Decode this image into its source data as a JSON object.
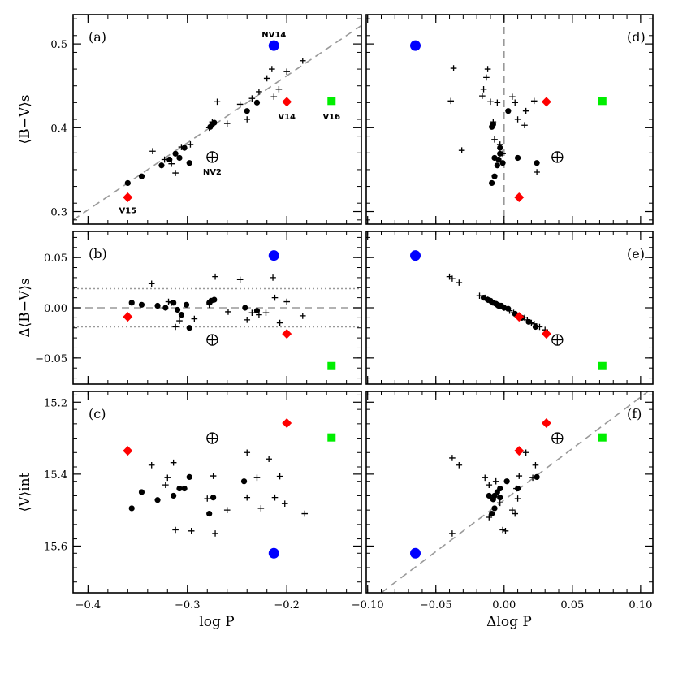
{
  "colors": {
    "blue": "#0000ff",
    "red": "#ff0000",
    "green": "#00ee00",
    "dash": "#999999",
    "dot": "#999999"
  },
  "x_tick_labels": {
    "logP": [
      "−0.4",
      "−0.3",
      "−0.2"
    ],
    "dlogP": [
      "−0.10",
      "−0.05",
      "0.00",
      "0.05",
      "0.10"
    ]
  },
  "axis_labels": {
    "x_left": "log P",
    "x_right": "Δlog P",
    "y_a": "⟨B−V⟩s",
    "y_b": "Δ⟨B−V⟩s",
    "y_c": "⟨V⟩int"
  },
  "panels": [
    {
      "id": "a",
      "label": "(a)"
    },
    {
      "id": "b",
      "label": "(b)"
    },
    {
      "id": "c",
      "label": "(c)"
    },
    {
      "id": "d",
      "label": "(d)"
    },
    {
      "id": "e",
      "label": "(e)"
    },
    {
      "id": "f",
      "label": "(f)"
    }
  ],
  "chart_data": [
    {
      "panel": "a",
      "type": "scatter",
      "xlabel": "log P",
      "ylabel": "⟨B−V⟩s",
      "xlim": [
        -0.415,
        -0.125
      ],
      "ylim": [
        0.285,
        0.535
      ],
      "y_ticks": [
        "0.3",
        "0.4",
        "0.5"
      ],
      "fit_line": [
        [
          -0.415,
          0.29
        ],
        [
          -0.125,
          0.522
        ]
      ],
      "dots": [
        [
          -0.36,
          0.334
        ],
        [
          -0.346,
          0.342
        ],
        [
          -0.326,
          0.355
        ],
        [
          -0.318,
          0.362
        ],
        [
          -0.312,
          0.369
        ],
        [
          -0.308,
          0.364
        ],
        [
          -0.303,
          0.376
        ],
        [
          -0.298,
          0.358
        ],
        [
          -0.277,
          0.401
        ],
        [
          -0.275,
          0.404
        ],
        [
          -0.273,
          0.406
        ],
        [
          -0.24,
          0.42
        ],
        [
          -0.23,
          0.43
        ]
      ],
      "crosses": [
        [
          -0.335,
          0.372
        ],
        [
          -0.323,
          0.362
        ],
        [
          -0.316,
          0.357
        ],
        [
          -0.312,
          0.346
        ],
        [
          -0.306,
          0.377
        ],
        [
          -0.297,
          0.38
        ],
        [
          -0.278,
          0.4
        ],
        [
          -0.275,
          0.407
        ],
        [
          -0.27,
          0.431
        ],
        [
          -0.26,
          0.405
        ],
        [
          -0.247,
          0.428
        ],
        [
          -0.24,
          0.41
        ],
        [
          -0.235,
          0.435
        ],
        [
          -0.228,
          0.443
        ],
        [
          -0.22,
          0.459
        ],
        [
          -0.215,
          0.47
        ],
        [
          -0.213,
          0.437
        ],
        [
          -0.208,
          0.446
        ],
        [
          -0.2,
          0.467
        ],
        [
          -0.184,
          0.48
        ]
      ],
      "blue": [
        [
          -0.213,
          0.498
        ]
      ],
      "red": [
        [
          -0.36,
          0.317
        ],
        [
          -0.2,
          0.431
        ]
      ],
      "green": [
        [
          -0.155,
          0.432
        ]
      ],
      "open_circle": [
        [
          -0.275,
          0.365
        ]
      ],
      "annotations": [
        {
          "text": "NV14",
          "x": -0.213,
          "y": 0.508
        },
        {
          "text": "V14",
          "x": -0.2,
          "y": 0.41
        },
        {
          "text": "V16",
          "x": -0.155,
          "y": 0.41
        },
        {
          "text": "NV2",
          "x": -0.275,
          "y": 0.344
        },
        {
          "text": "V15",
          "x": -0.36,
          "y": 0.298
        }
      ]
    },
    {
      "panel": "b",
      "type": "scatter",
      "xlabel": "log P",
      "ylabel": "Δ⟨B−V⟩s",
      "xlim": [
        -0.415,
        -0.125
      ],
      "ylim": [
        -0.076,
        0.076
      ],
      "y_ticks": [
        "0.05",
        "0.00",
        "−0.05"
      ],
      "zero_line": 0.0,
      "band": [
        -0.019,
        0.019
      ],
      "dots": [
        [
          -0.356,
          0.005
        ],
        [
          -0.346,
          0.003
        ],
        [
          -0.33,
          0.002
        ],
        [
          -0.322,
          0.0
        ],
        [
          -0.314,
          0.005
        ],
        [
          -0.31,
          -0.002
        ],
        [
          -0.306,
          -0.007
        ],
        [
          -0.301,
          0.003
        ],
        [
          -0.298,
          -0.02
        ],
        [
          -0.278,
          0.005
        ],
        [
          -0.276,
          0.007
        ],
        [
          -0.273,
          0.008
        ],
        [
          -0.242,
          0.0
        ],
        [
          -0.23,
          -0.003
        ]
      ],
      "crosses": [
        [
          -0.336,
          0.024
        ],
        [
          -0.319,
          0.006
        ],
        [
          -0.316,
          0.005
        ],
        [
          -0.312,
          -0.019
        ],
        [
          -0.308,
          -0.013
        ],
        [
          -0.293,
          -0.011
        ],
        [
          -0.278,
          0.003
        ],
        [
          -0.272,
          0.031
        ],
        [
          -0.259,
          -0.004
        ],
        [
          -0.247,
          0.028
        ],
        [
          -0.24,
          -0.012
        ],
        [
          -0.235,
          -0.005
        ],
        [
          -0.228,
          -0.007
        ],
        [
          -0.221,
          -0.005
        ],
        [
          -0.214,
          0.03
        ],
        [
          -0.212,
          0.01
        ],
        [
          -0.207,
          -0.015
        ],
        [
          -0.2,
          0.006
        ],
        [
          -0.184,
          -0.008
        ]
      ],
      "blue": [
        [
          -0.213,
          0.052
        ]
      ],
      "red": [
        [
          -0.36,
          -0.009
        ],
        [
          -0.2,
          -0.026
        ]
      ],
      "green": [
        [
          -0.155,
          -0.058
        ]
      ],
      "open_circle": [
        [
          -0.275,
          -0.032
        ]
      ]
    },
    {
      "panel": "c",
      "type": "scatter",
      "xlabel": "log P",
      "ylabel": "⟨V⟩int",
      "xlim": [
        -0.415,
        -0.125
      ],
      "ylim": [
        15.73,
        15.17
      ],
      "y_ticks": [
        "15.2",
        "15.4",
        "15.6"
      ],
      "dots": [
        [
          -0.356,
          15.495
        ],
        [
          -0.346,
          15.45
        ],
        [
          -0.33,
          15.472
        ],
        [
          -0.314,
          15.46
        ],
        [
          -0.308,
          15.44
        ],
        [
          -0.303,
          15.44
        ],
        [
          -0.298,
          15.408
        ],
        [
          -0.278,
          15.51
        ],
        [
          -0.274,
          15.465
        ],
        [
          -0.243,
          15.42
        ]
      ],
      "crosses": [
        [
          -0.336,
          15.375
        ],
        [
          -0.322,
          15.43
        ],
        [
          -0.32,
          15.41
        ],
        [
          -0.314,
          15.368
        ],
        [
          -0.312,
          15.555
        ],
        [
          -0.296,
          15.558
        ],
        [
          -0.28,
          15.468
        ],
        [
          -0.274,
          15.405
        ],
        [
          -0.272,
          15.565
        ],
        [
          -0.26,
          15.5
        ],
        [
          -0.24,
          15.34
        ],
        [
          -0.24,
          15.465
        ],
        [
          -0.23,
          15.41
        ],
        [
          -0.226,
          15.495
        ],
        [
          -0.218,
          15.358
        ],
        [
          -0.212,
          15.465
        ],
        [
          -0.207,
          15.406
        ],
        [
          -0.202,
          15.482
        ],
        [
          -0.182,
          15.51
        ]
      ],
      "blue": [
        [
          -0.213,
          15.62
        ]
      ],
      "red": [
        [
          -0.36,
          15.335
        ],
        [
          -0.2,
          15.258
        ]
      ],
      "green": [
        [
          -0.155,
          15.298
        ]
      ],
      "open_circle": [
        [
          -0.275,
          15.3
        ]
      ]
    },
    {
      "panel": "d",
      "type": "scatter",
      "xlabel": "Δlog P",
      "ylabel": "⟨B−V⟩s",
      "xlim": [
        -0.101,
        0.109
      ],
      "ylim": [
        0.285,
        0.535
      ],
      "vline": 0.0,
      "dots": [
        [
          -0.009,
          0.334
        ],
        [
          -0.007,
          0.342
        ],
        [
          -0.005,
          0.355
        ],
        [
          -0.004,
          0.362
        ],
        [
          -0.003,
          0.369
        ],
        [
          -0.003,
          0.376
        ],
        [
          -0.007,
          0.364
        ],
        [
          -0.009,
          0.401
        ],
        [
          -0.008,
          0.404
        ],
        [
          -0.001,
          0.358
        ],
        [
          0.003,
          0.42
        ],
        [
          0.01,
          0.364
        ],
        [
          0.024,
          0.358
        ]
      ],
      "crosses": [
        [
          -0.037,
          0.471
        ],
        [
          -0.039,
          0.432
        ],
        [
          -0.031,
          0.373
        ],
        [
          -0.016,
          0.438
        ],
        [
          -0.015,
          0.446
        ],
        [
          -0.013,
          0.46
        ],
        [
          -0.012,
          0.47
        ],
        [
          -0.01,
          0.431
        ],
        [
          -0.008,
          0.407
        ],
        [
          -0.007,
          0.386
        ],
        [
          -0.005,
          0.43
        ],
        [
          -0.003,
          0.38
        ],
        [
          -0.001,
          0.369
        ],
        [
          0.006,
          0.437
        ],
        [
          0.008,
          0.43
        ],
        [
          0.01,
          0.41
        ],
        [
          0.015,
          0.403
        ],
        [
          0.016,
          0.42
        ],
        [
          0.022,
          0.432
        ],
        [
          0.024,
          0.347
        ]
      ],
      "blue": [
        [
          -0.065,
          0.498
        ]
      ],
      "red": [
        [
          0.031,
          0.431
        ],
        [
          0.011,
          0.317
        ]
      ],
      "green": [
        [
          0.072,
          0.432
        ]
      ],
      "open_circle": [
        [
          0.039,
          0.365
        ]
      ]
    },
    {
      "panel": "e",
      "type": "scatter",
      "xlabel": "Δlog P",
      "ylabel": "Δ⟨B−V⟩s",
      "xlim": [
        -0.101,
        0.109
      ],
      "ylim": [
        -0.076,
        0.076
      ],
      "dots": [
        [
          -0.015,
          0.01
        ],
        [
          -0.012,
          0.008
        ],
        [
          -0.01,
          0.007
        ],
        [
          -0.008,
          0.005
        ],
        [
          -0.006,
          0.004
        ],
        [
          -0.005,
          0.003
        ],
        [
          -0.004,
          0.002
        ],
        [
          -0.002,
          0.002
        ],
        [
          0.0,
          0.0
        ],
        [
          0.003,
          -0.001
        ],
        [
          0.008,
          -0.006
        ],
        [
          0.013,
          -0.01
        ],
        [
          0.018,
          -0.014
        ],
        [
          0.023,
          -0.019
        ]
      ],
      "crosses": [
        [
          -0.04,
          0.031
        ],
        [
          -0.038,
          0.029
        ],
        [
          -0.033,
          0.025
        ],
        [
          -0.018,
          0.012
        ],
        [
          -0.014,
          0.01
        ],
        [
          -0.012,
          0.008
        ],
        [
          -0.009,
          0.006
        ],
        [
          -0.007,
          0.005
        ],
        [
          -0.003,
          0.002
        ],
        [
          0.0,
          0.0
        ],
        [
          0.004,
          -0.003
        ],
        [
          0.007,
          -0.005
        ],
        [
          0.012,
          -0.009
        ],
        [
          0.015,
          -0.01
        ],
        [
          0.017,
          -0.012
        ],
        [
          0.02,
          -0.015
        ],
        [
          0.022,
          -0.016
        ],
        [
          0.026,
          -0.019
        ],
        [
          0.03,
          -0.022
        ]
      ],
      "blue": [
        [
          -0.065,
          0.052
        ]
      ],
      "red": [
        [
          0.011,
          -0.009
        ],
        [
          0.031,
          -0.026
        ]
      ],
      "green": [
        [
          0.072,
          -0.058
        ]
      ],
      "open_circle": [
        [
          0.039,
          -0.032
        ]
      ]
    },
    {
      "panel": "f",
      "type": "scatter",
      "xlabel": "Δlog P",
      "ylabel": "⟨V⟩int",
      "xlim": [
        -0.101,
        0.109
      ],
      "ylim": [
        15.73,
        15.17
      ],
      "fit_line": [
        [
          -0.09,
          15.73
        ],
        [
          0.109,
          15.16
        ]
      ],
      "dots": [
        [
          -0.011,
          15.46
        ],
        [
          -0.009,
          15.51
        ],
        [
          -0.008,
          15.47
        ],
        [
          -0.007,
          15.46
        ],
        [
          -0.007,
          15.495
        ],
        [
          -0.005,
          15.45
        ],
        [
          -0.003,
          15.44
        ],
        [
          -0.003,
          15.465
        ],
        [
          0.002,
          15.42
        ],
        [
          0.01,
          15.44
        ],
        [
          0.024,
          15.408
        ]
      ],
      "crosses": [
        [
          -0.038,
          15.355
        ],
        [
          -0.033,
          15.375
        ],
        [
          -0.038,
          15.565
        ],
        [
          -0.014,
          15.41
        ],
        [
          -0.011,
          15.43
        ],
        [
          -0.011,
          15.52
        ],
        [
          -0.006,
          15.42
        ],
        [
          -0.003,
          15.48
        ],
        [
          -0.001,
          15.555
        ],
        [
          0.001,
          15.558
        ],
        [
          0.006,
          15.5
        ],
        [
          0.008,
          15.51
        ],
        [
          0.009,
          15.44
        ],
        [
          0.01,
          15.468
        ],
        [
          0.011,
          15.405
        ],
        [
          0.016,
          15.34
        ],
        [
          0.021,
          15.41
        ],
        [
          0.023,
          15.375
        ]
      ],
      "blue": [
        [
          -0.065,
          15.62
        ]
      ],
      "red": [
        [
          0.031,
          15.258
        ],
        [
          0.011,
          15.335
        ]
      ],
      "green": [
        [
          0.072,
          15.298
        ]
      ],
      "open_circle": [
        [
          0.039,
          15.3
        ]
      ]
    }
  ]
}
